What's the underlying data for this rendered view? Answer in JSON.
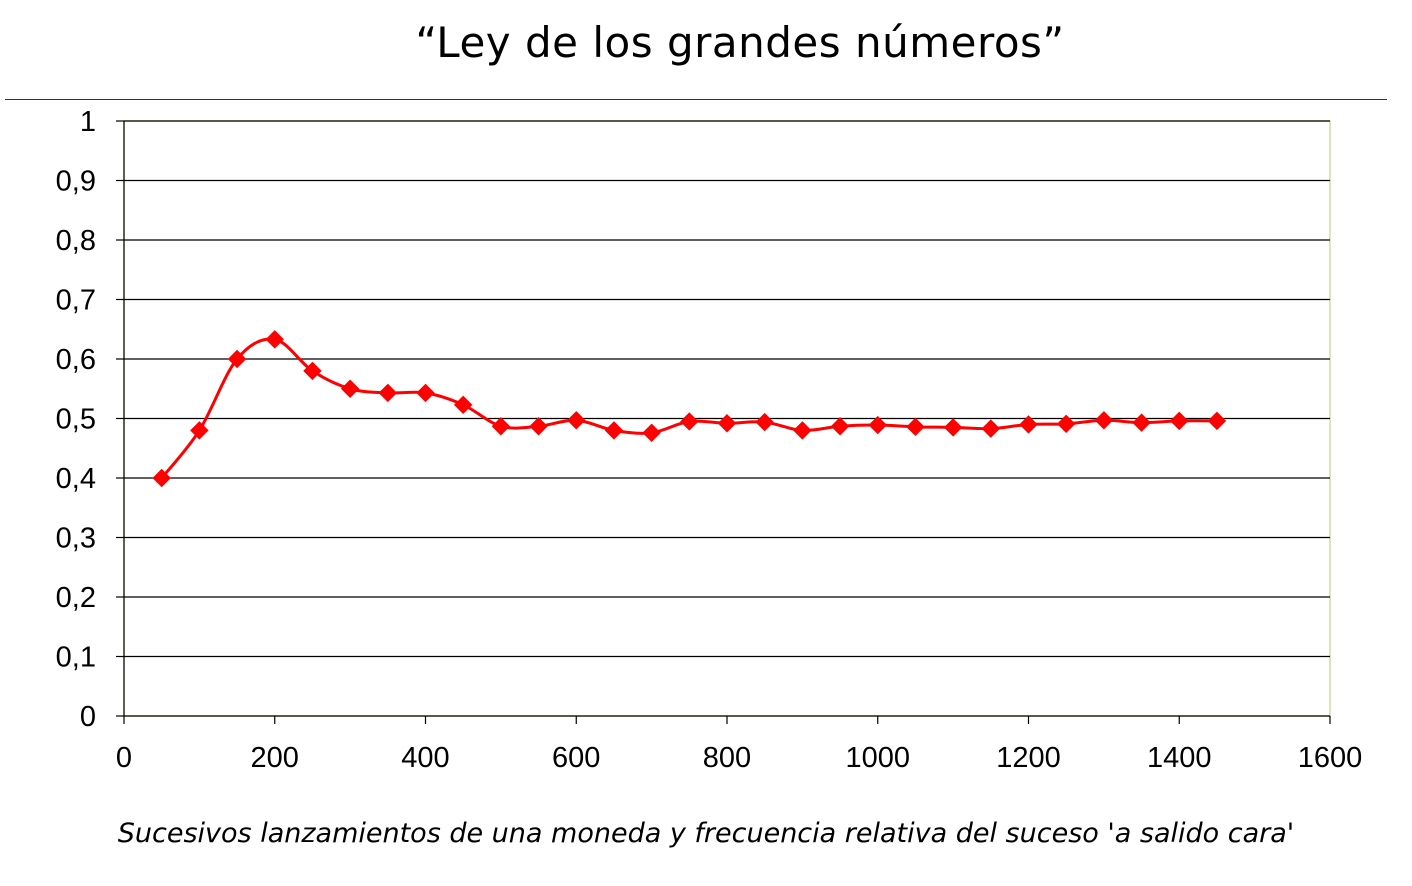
{
  "chart_data": {
    "type": "line",
    "title": "“Ley de los grandes números”",
    "caption": "Sucesivos lanzamientos de una moneda y frecuencia relativa del suceso 'a salido cara'",
    "xlabel": "",
    "ylabel": "",
    "xlim": [
      0,
      1600
    ],
    "ylim": [
      0,
      1
    ],
    "x_ticks": [
      0,
      200,
      400,
      600,
      800,
      1000,
      1200,
      1400,
      1600
    ],
    "x_tick_labels": [
      "0",
      "200",
      "400",
      "600",
      "800",
      "1000",
      "1200",
      "1400",
      "1600"
    ],
    "y_ticks": [
      0,
      0.1,
      0.2,
      0.3,
      0.4,
      0.5,
      0.6,
      0.7,
      0.8,
      0.9,
      1
    ],
    "y_tick_labels": [
      "0",
      "0,1",
      "0,2",
      "0,3",
      "0,4",
      "0,5",
      "0,6",
      "0,7",
      "0,8",
      "0,9",
      "1"
    ],
    "grid": "horizontal",
    "legend": "none",
    "series": [
      {
        "color": "#ff0000",
        "marker": "diamond",
        "smooth": true,
        "x": [
          50,
          100,
          150,
          200,
          250,
          300,
          350,
          400,
          450,
          500,
          550,
          600,
          650,
          700,
          750,
          800,
          850,
          900,
          950,
          1000,
          1050,
          1100,
          1150,
          1200,
          1250,
          1300,
          1350,
          1400,
          1450
        ],
        "y": [
          0.4,
          0.48,
          0.6,
          0.633,
          0.58,
          0.55,
          0.543,
          0.543,
          0.523,
          0.487,
          0.487,
          0.497,
          0.48,
          0.476,
          0.495,
          0.492,
          0.494,
          0.48,
          0.487,
          0.489,
          0.486,
          0.485,
          0.483,
          0.49,
          0.491,
          0.497,
          0.493,
          0.496,
          0.496
        ]
      }
    ]
  }
}
